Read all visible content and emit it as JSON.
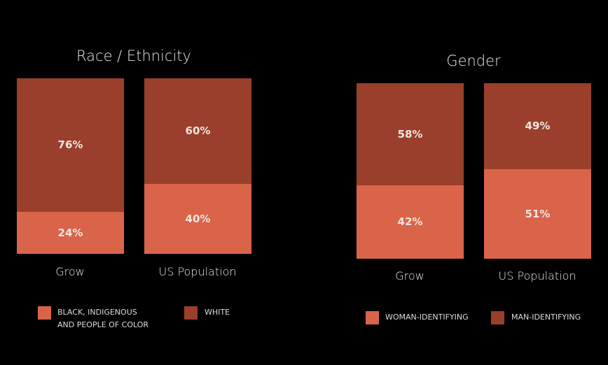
{
  "colors": {
    "light": "#D9644A",
    "dark": "#9A3F2B"
  },
  "chart_data": [
    {
      "type": "bar",
      "stacked": true,
      "title": "Race / Ethnicity",
      "categories": [
        "Grow",
        "US Population"
      ],
      "series": [
        {
          "name": "BLACK, INDIGENOUS AND PEOPLE OF COLOR",
          "values": [
            24,
            40
          ],
          "labels": [
            "24%",
            "40%"
          ]
        },
        {
          "name": "WHITE",
          "values": [
            76,
            60
          ],
          "labels": [
            "76%",
            "60%"
          ]
        }
      ],
      "ylim": [
        0,
        100
      ],
      "legend": {
        "line1": "BLACK, INDIGENOUS",
        "line2": "AND PEOPLE OF COLOR",
        "item2": "WHITE"
      }
    },
    {
      "type": "bar",
      "stacked": true,
      "title": "Gender",
      "categories": [
        "Grow",
        "US Population"
      ],
      "series": [
        {
          "name": "WOMAN-IDENTIFYING",
          "values": [
            42,
            51
          ],
          "labels": [
            "42%",
            "51%"
          ]
        },
        {
          "name": "MAN-IDENTIFYING",
          "values": [
            58,
            49
          ],
          "labels": [
            "58%",
            "49%"
          ]
        }
      ],
      "ylim": [
        0,
        100
      ],
      "legend": {
        "item1": "WOMAN-IDENTIFYING",
        "item2": "MAN-IDENTIFYING"
      }
    }
  ]
}
